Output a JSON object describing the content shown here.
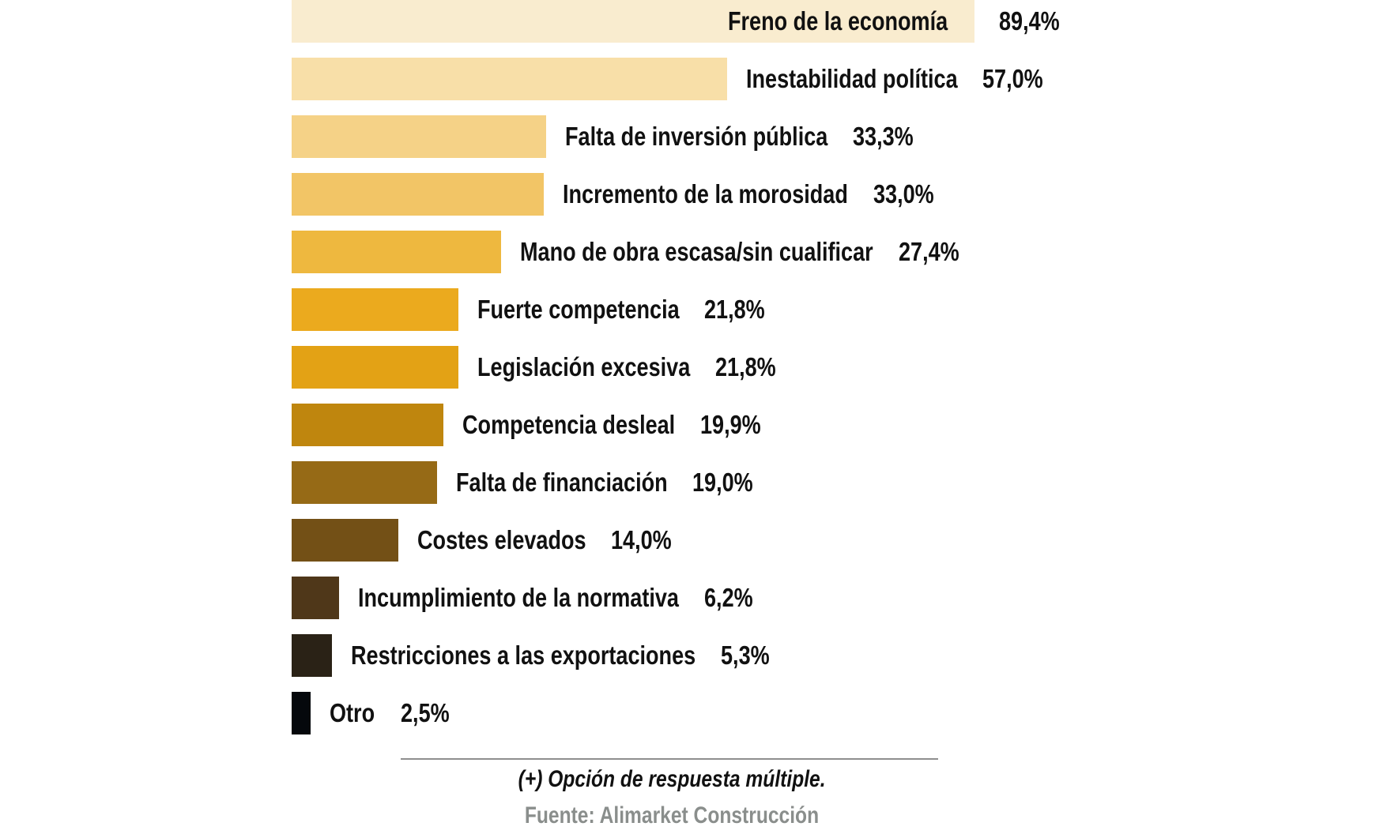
{
  "chart_data": {
    "type": "bar",
    "orientation": "horizontal",
    "title": "",
    "xlabel": "",
    "ylabel": "",
    "xlim": [
      0,
      100
    ],
    "grid": false,
    "value_suffix": "%",
    "categories": [
      "Freno de la economía",
      "Inestabilidad política",
      "Falta de inversión pública",
      "Incremento de la morosidad",
      "Mano de obra escasa/sin cualificar",
      "Fuerte competencia",
      "Legislación excesiva",
      "Competencia desleal",
      "Falta de financiación",
      "Costes elevados",
      "Incumplimiento de la normativa",
      "Restricciones a las exportaciones",
      "Otro"
    ],
    "values": [
      89.4,
      57.0,
      33.3,
      33.0,
      27.4,
      21.8,
      21.8,
      19.9,
      19.0,
      14.0,
      6.2,
      5.3,
      2.5
    ],
    "value_labels": [
      "89,4%",
      "57,0%",
      "33,3%",
      "33,0%",
      "27,4%",
      "21,8%",
      "21,8%",
      "19,9%",
      "19,0%",
      "14,0%",
      "6,2%",
      "5,3%",
      "2,5%"
    ],
    "colors": [
      "#F9ECCF",
      "#F8DFA8",
      "#F5D287",
      "#F2C566",
      "#EEB83F",
      "#EBAA1E",
      "#E3A215",
      "#BF860E",
      "#966A16",
      "#735016",
      "#4F3719",
      "#2A2216",
      "#05080C"
    ],
    "annotations": {
      "note": "(+) Opción de respuesta múltiple.",
      "source": "Fuente: Alimarket Construcción"
    }
  }
}
